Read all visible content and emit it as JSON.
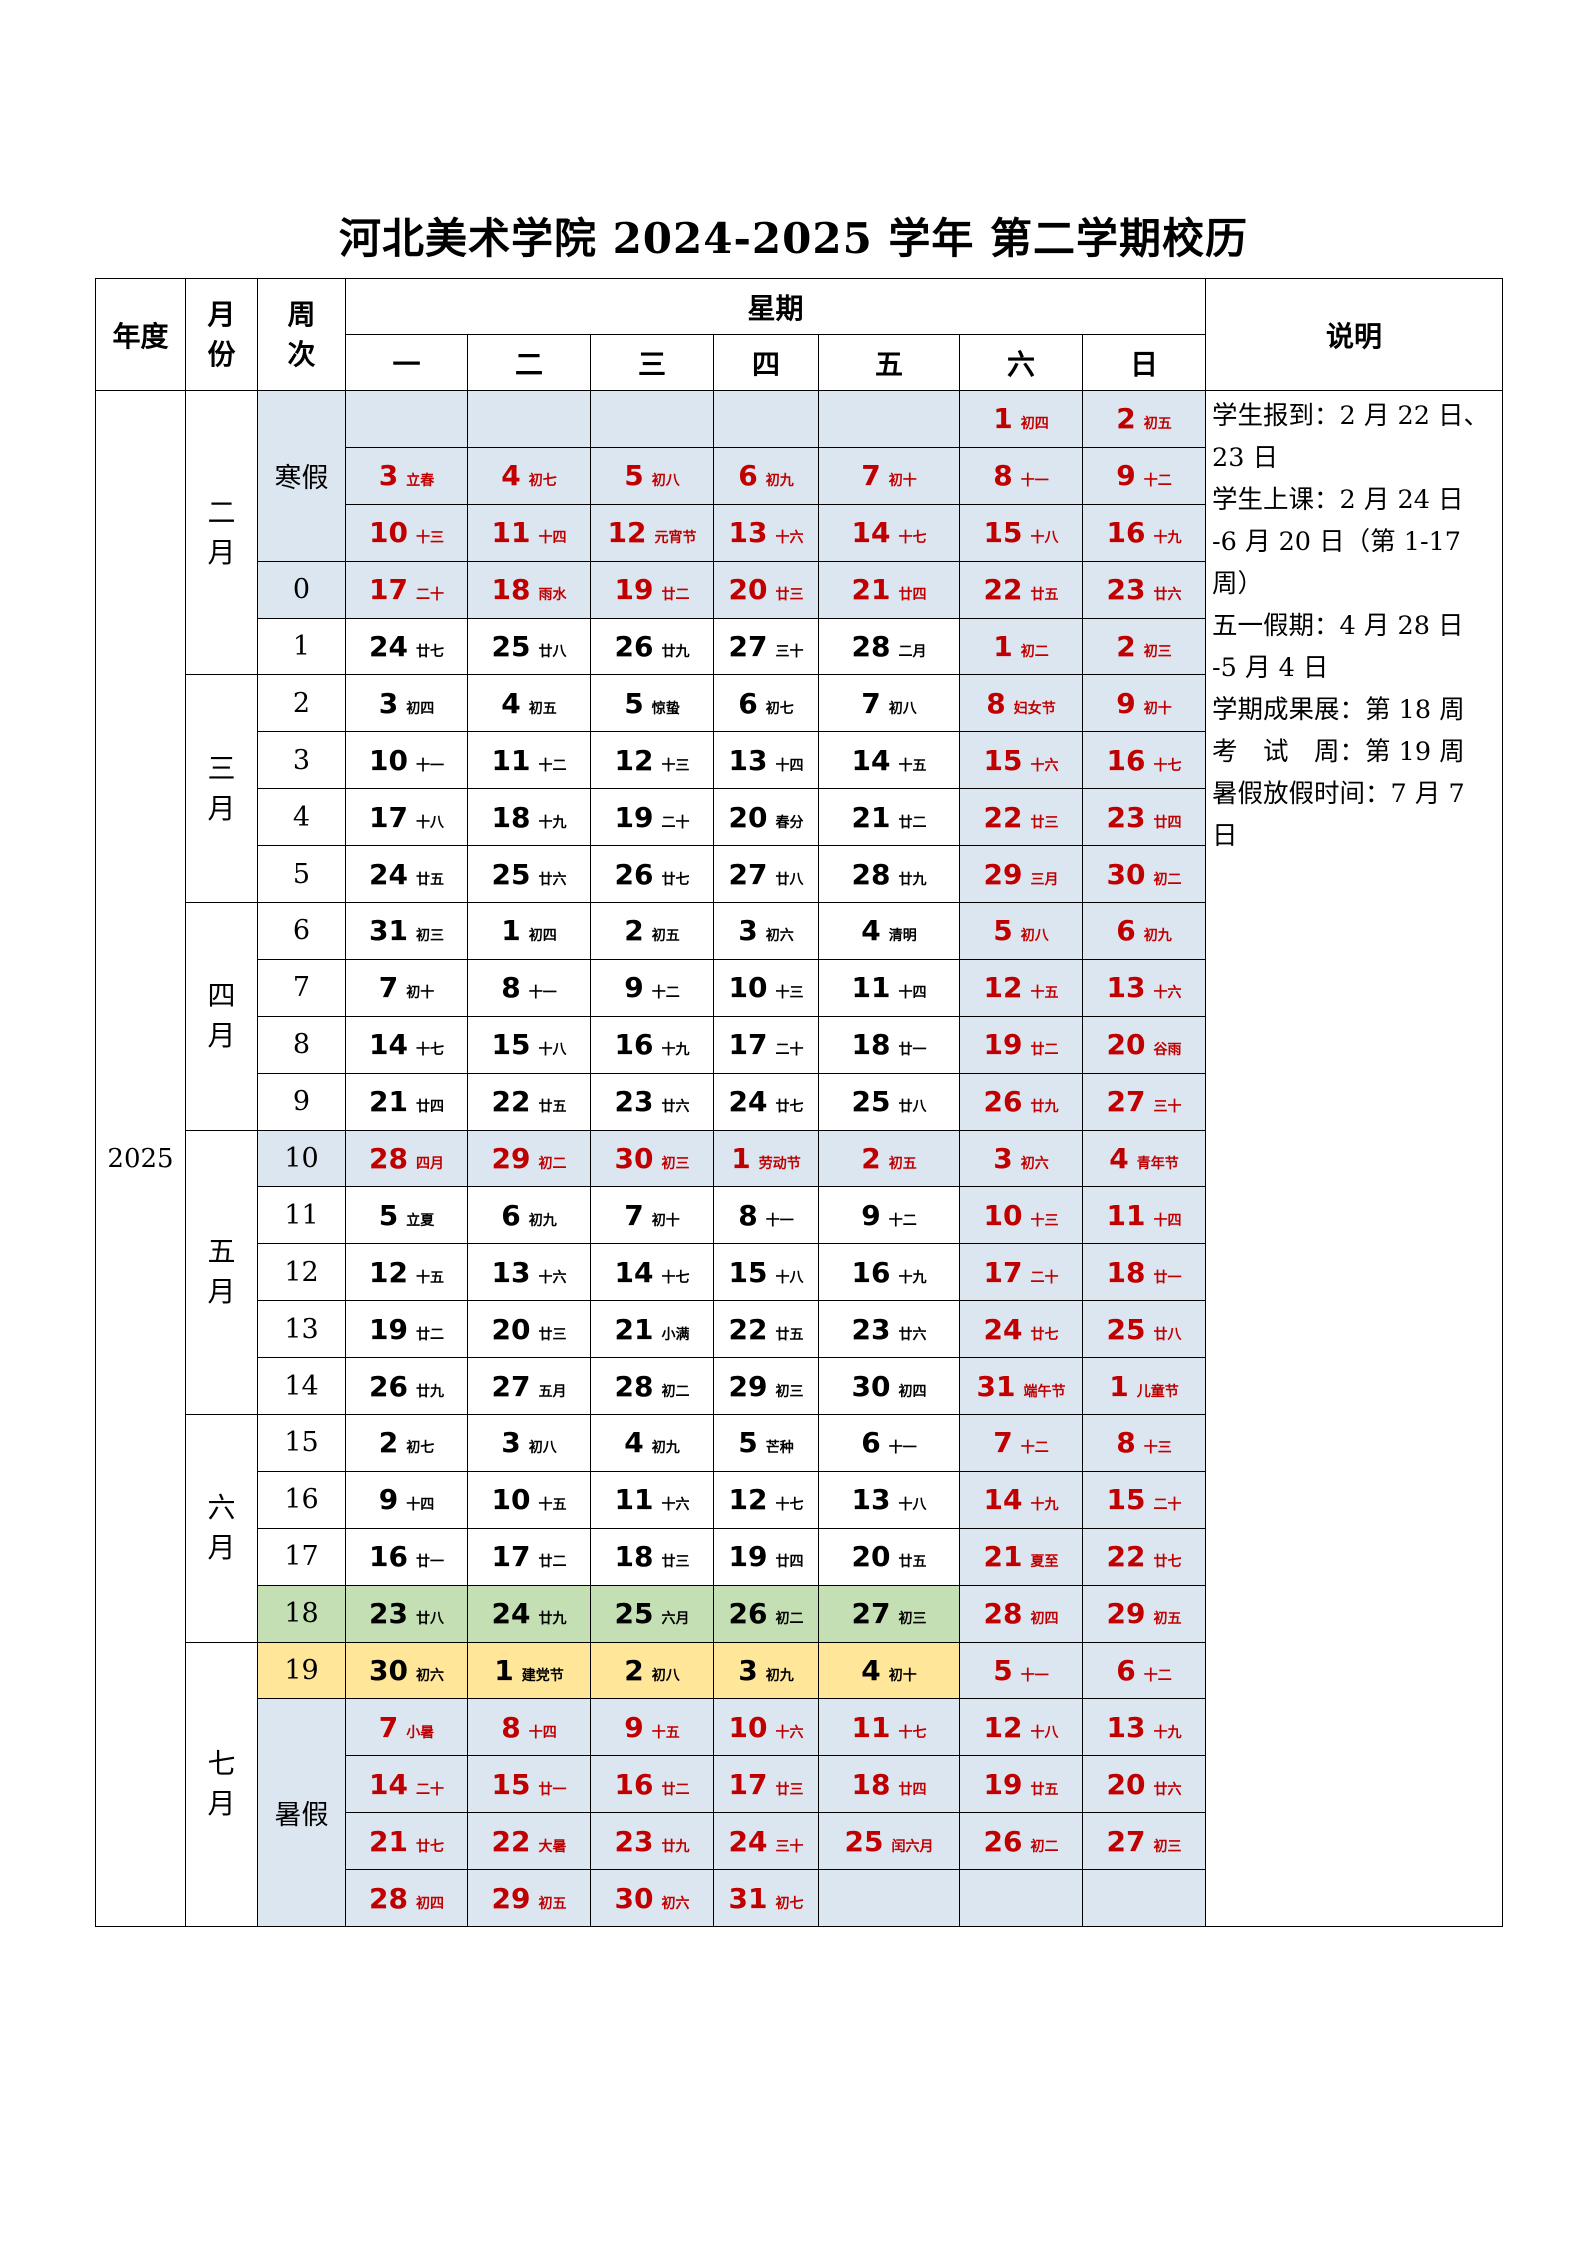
{
  "title": "河北美术学院 2024-2025 学年 第二学期校历",
  "header": {
    "year": "年度",
    "month": "月份",
    "week": "周次",
    "weekday_group": "星期",
    "weekdays": [
      "一",
      "二",
      "三",
      "四",
      "五",
      "六",
      "日"
    ],
    "notes": "说明"
  },
  "colors": {
    "red": "#c00000",
    "holiday_bg": "#dce6f1",
    "exhibition_bg": "#c4dfb3",
    "exam_bg": "#ffe699"
  },
  "year": "2025",
  "months": [
    {
      "label": "二月",
      "rows": 5
    },
    {
      "label": "三月",
      "rows": 4
    },
    {
      "label": "四月",
      "rows": 4
    },
    {
      "label": "五月",
      "rows": 5
    },
    {
      "label": "六月",
      "rows": 4
    },
    {
      "label": "七月",
      "rows": 5
    }
  ],
  "rows": [
    {
      "week": "寒假",
      "span": 3,
      "type": "holiday",
      "cells": [
        [
          "",
          ""
        ],
        [
          "",
          ""
        ],
        [
          "",
          ""
        ],
        [
          "",
          ""
        ],
        [
          "",
          ""
        ],
        [
          "1",
          "初四"
        ],
        [
          "2",
          "初五"
        ]
      ]
    },
    {
      "type": "holiday",
      "cells": [
        [
          "3",
          "立春"
        ],
        [
          "4",
          "初七"
        ],
        [
          "5",
          "初八"
        ],
        [
          "6",
          "初九"
        ],
        [
          "7",
          "初十"
        ],
        [
          "8",
          "十一"
        ],
        [
          "9",
          "十二"
        ]
      ]
    },
    {
      "type": "holiday",
      "cells": [
        [
          "10",
          "十三"
        ],
        [
          "11",
          "十四"
        ],
        [
          "12",
          "元宵节"
        ],
        [
          "13",
          "十六"
        ],
        [
          "14",
          "十七"
        ],
        [
          "15",
          "十八"
        ],
        [
          "16",
          "十九"
        ]
      ]
    },
    {
      "week": "0",
      "type": "holiday",
      "cells": [
        [
          "17",
          "二十"
        ],
        [
          "18",
          "雨水"
        ],
        [
          "19",
          "廿二"
        ],
        [
          "20",
          "廿三"
        ],
        [
          "21",
          "廿四"
        ],
        [
          "22",
          "廿五"
        ],
        [
          "23",
          "廿六"
        ]
      ]
    },
    {
      "week": "1",
      "type": "normal",
      "cells": [
        [
          "24",
          "廿七"
        ],
        [
          "25",
          "廿八"
        ],
        [
          "26",
          "廿九"
        ],
        [
          "27",
          "三十"
        ],
        [
          "28",
          "二月"
        ],
        [
          "1",
          "初二"
        ],
        [
          "2",
          "初三"
        ]
      ]
    },
    {
      "week": "2",
      "type": "normal",
      "cells": [
        [
          "3",
          "初四"
        ],
        [
          "4",
          "初五"
        ],
        [
          "5",
          "惊蛰"
        ],
        [
          "6",
          "初七"
        ],
        [
          "7",
          "初八"
        ],
        [
          "8",
          "妇女节"
        ],
        [
          "9",
          "初十"
        ]
      ]
    },
    {
      "week": "3",
      "type": "normal",
      "cells": [
        [
          "10",
          "十一"
        ],
        [
          "11",
          "十二"
        ],
        [
          "12",
          "十三"
        ],
        [
          "13",
          "十四"
        ],
        [
          "14",
          "十五"
        ],
        [
          "15",
          "十六"
        ],
        [
          "16",
          "十七"
        ]
      ]
    },
    {
      "week": "4",
      "type": "normal",
      "cells": [
        [
          "17",
          "十八"
        ],
        [
          "18",
          "十九"
        ],
        [
          "19",
          "二十"
        ],
        [
          "20",
          "春分"
        ],
        [
          "21",
          "廿二"
        ],
        [
          "22",
          "廿三"
        ],
        [
          "23",
          "廿四"
        ]
      ]
    },
    {
      "week": "5",
      "type": "normal",
      "cells": [
        [
          "24",
          "廿五"
        ],
        [
          "25",
          "廿六"
        ],
        [
          "26",
          "廿七"
        ],
        [
          "27",
          "廿八"
        ],
        [
          "28",
          "廿九"
        ],
        [
          "29",
          "三月"
        ],
        [
          "30",
          "初二"
        ]
      ]
    },
    {
      "week": "6",
      "type": "normal",
      "cells": [
        [
          "31",
          "初三"
        ],
        [
          "1",
          "初四"
        ],
        [
          "2",
          "初五"
        ],
        [
          "3",
          "初六"
        ],
        [
          "4",
          "清明"
        ],
        [
          "5",
          "初八"
        ],
        [
          "6",
          "初九"
        ]
      ]
    },
    {
      "week": "7",
      "type": "normal",
      "cells": [
        [
          "7",
          "初十"
        ],
        [
          "8",
          "十一"
        ],
        [
          "9",
          "十二"
        ],
        [
          "10",
          "十三"
        ],
        [
          "11",
          "十四"
        ],
        [
          "12",
          "十五"
        ],
        [
          "13",
          "十六"
        ]
      ]
    },
    {
      "week": "8",
      "type": "normal",
      "cells": [
        [
          "14",
          "十七"
        ],
        [
          "15",
          "十八"
        ],
        [
          "16",
          "十九"
        ],
        [
          "17",
          "二十"
        ],
        [
          "18",
          "廿一"
        ],
        [
          "19",
          "廿二"
        ],
        [
          "20",
          "谷雨"
        ]
      ]
    },
    {
      "week": "9",
      "type": "normal",
      "cells": [
        [
          "21",
          "廿四"
        ],
        [
          "22",
          "廿五"
        ],
        [
          "23",
          "廿六"
        ],
        [
          "24",
          "廿七"
        ],
        [
          "25",
          "廿八"
        ],
        [
          "26",
          "廿九"
        ],
        [
          "27",
          "三十"
        ]
      ]
    },
    {
      "week": "10",
      "type": "holiday",
      "cells": [
        [
          "28",
          "四月"
        ],
        [
          "29",
          "初二"
        ],
        [
          "30",
          "初三"
        ],
        [
          "1",
          "劳动节"
        ],
        [
          "2",
          "初五"
        ],
        [
          "3",
          "初六"
        ],
        [
          "4",
          "青年节"
        ]
      ]
    },
    {
      "week": "11",
      "type": "normal",
      "cells": [
        [
          "5",
          "立夏"
        ],
        [
          "6",
          "初九"
        ],
        [
          "7",
          "初十"
        ],
        [
          "8",
          "十一"
        ],
        [
          "9",
          "十二"
        ],
        [
          "10",
          "十三"
        ],
        [
          "11",
          "十四"
        ]
      ]
    },
    {
      "week": "12",
      "type": "normal",
      "cells": [
        [
          "12",
          "十五"
        ],
        [
          "13",
          "十六"
        ],
        [
          "14",
          "十七"
        ],
        [
          "15",
          "十八"
        ],
        [
          "16",
          "十九"
        ],
        [
          "17",
          "二十"
        ],
        [
          "18",
          "廿一"
        ]
      ]
    },
    {
      "week": "13",
      "type": "normal",
      "cells": [
        [
          "19",
          "廿二"
        ],
        [
          "20",
          "廿三"
        ],
        [
          "21",
          "小满"
        ],
        [
          "22",
          "廿五"
        ],
        [
          "23",
          "廿六"
        ],
        [
          "24",
          "廿七"
        ],
        [
          "25",
          "廿八"
        ]
      ]
    },
    {
      "week": "14",
      "type": "normal",
      "cells": [
        [
          "26",
          "廿九"
        ],
        [
          "27",
          "五月"
        ],
        [
          "28",
          "初二"
        ],
        [
          "29",
          "初三"
        ],
        [
          "30",
          "初四"
        ],
        [
          "31",
          "端午节"
        ],
        [
          "1",
          "儿童节"
        ]
      ]
    },
    {
      "week": "15",
      "type": "normal",
      "cells": [
        [
          "2",
          "初七"
        ],
        [
          "3",
          "初八"
        ],
        [
          "4",
          "初九"
        ],
        [
          "5",
          "芒种"
        ],
        [
          "6",
          "十一"
        ],
        [
          "7",
          "十二"
        ],
        [
          "8",
          "十三"
        ]
      ]
    },
    {
      "week": "16",
      "type": "normal",
      "cells": [
        [
          "9",
          "十四"
        ],
        [
          "10",
          "十五"
        ],
        [
          "11",
          "十六"
        ],
        [
          "12",
          "十七"
        ],
        [
          "13",
          "十八"
        ],
        [
          "14",
          "十九"
        ],
        [
          "15",
          "二十"
        ]
      ]
    },
    {
      "week": "17",
      "type": "normal",
      "cells": [
        [
          "16",
          "廿一"
        ],
        [
          "17",
          "廿二"
        ],
        [
          "18",
          "廿三"
        ],
        [
          "19",
          "廿四"
        ],
        [
          "20",
          "廿五"
        ],
        [
          "21",
          "夏至"
        ],
        [
          "22",
          "廿七"
        ]
      ]
    },
    {
      "week": "18",
      "type": "exhibition",
      "cells": [
        [
          "23",
          "廿八"
        ],
        [
          "24",
          "廿九"
        ],
        [
          "25",
          "六月"
        ],
        [
          "26",
          "初二"
        ],
        [
          "27",
          "初三"
        ],
        [
          "28",
          "初四"
        ],
        [
          "29",
          "初五"
        ]
      ]
    },
    {
      "week": "19",
      "type": "exam",
      "cells": [
        [
          "30",
          "初六"
        ],
        [
          "1",
          "建党节"
        ],
        [
          "2",
          "初八"
        ],
        [
          "3",
          "初九"
        ],
        [
          "4",
          "初十"
        ],
        [
          "5",
          "十一"
        ],
        [
          "6",
          "十二"
        ]
      ]
    },
    {
      "week": "暑假",
      "span": 4,
      "type": "holiday",
      "cells": [
        [
          "7",
          "小暑"
        ],
        [
          "8",
          "十四"
        ],
        [
          "9",
          "十五"
        ],
        [
          "10",
          "十六"
        ],
        [
          "11",
          "十七"
        ],
        [
          "12",
          "十八"
        ],
        [
          "13",
          "十九"
        ]
      ]
    },
    {
      "type": "holiday",
      "cells": [
        [
          "14",
          "二十"
        ],
        [
          "15",
          "廿一"
        ],
        [
          "16",
          "廿二"
        ],
        [
          "17",
          "廿三"
        ],
        [
          "18",
          "廿四"
        ],
        [
          "19",
          "廿五"
        ],
        [
          "20",
          "廿六"
        ]
      ]
    },
    {
      "type": "holiday",
      "cells": [
        [
          "21",
          "廿七"
        ],
        [
          "22",
          "大暑"
        ],
        [
          "23",
          "廿九"
        ],
        [
          "24",
          "三十"
        ],
        [
          "25",
          "闰六月"
        ],
        [
          "26",
          "初二"
        ],
        [
          "27",
          "初三"
        ]
      ]
    },
    {
      "type": "holiday",
      "cells": [
        [
          "28",
          "初四"
        ],
        [
          "29",
          "初五"
        ],
        [
          "30",
          "初六"
        ],
        [
          "31",
          "初七"
        ],
        [
          "",
          ""
        ],
        [
          "",
          ""
        ],
        [
          "",
          ""
        ]
      ]
    }
  ],
  "notes": [
    "学生报到：2 月 22 日、",
    "23 日",
    "学生上课：2 月 24 日",
    "-6 月 20 日（第 1-17",
    "周）",
    "五一假期：4 月 28 日",
    "-5 月 4 日",
    "学期成果展：第 18 周",
    "考　试　周：第 19 周",
    "暑假放假时间：7 月 7",
    "日"
  ]
}
